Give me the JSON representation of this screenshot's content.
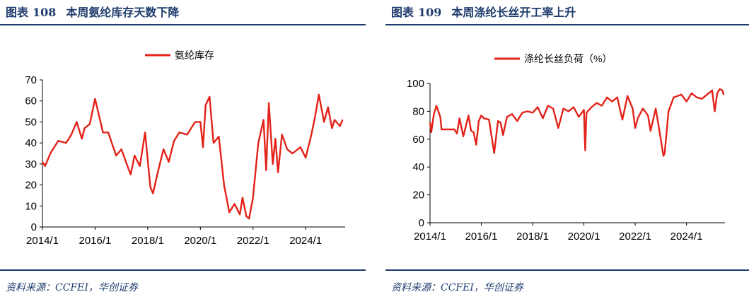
{
  "colors": {
    "accent": "#1f3d6e",
    "line": "#e32219"
  },
  "source_text": "资料来源：CCFEI，华创证券",
  "chart_data": [
    {
      "type": "line",
      "fig_prefix": "图表",
      "fig_number": "108",
      "title": "本周氨纶库存天数下降",
      "series": [
        {
          "name": "氨纶库存",
          "x": [
            2014.0,
            2014.1,
            2014.3,
            2014.6,
            2014.9,
            2015.1,
            2015.3,
            2015.5,
            2015.6,
            2015.8,
            2016.0,
            2016.3,
            2016.5,
            2016.8,
            2017.0,
            2017.2,
            2017.35,
            2017.5,
            2017.7,
            2017.9,
            2018.1,
            2018.2,
            2018.4,
            2018.6,
            2018.8,
            2019.0,
            2019.2,
            2019.5,
            2019.8,
            2020.0,
            2020.1,
            2020.2,
            2020.35,
            2020.5,
            2020.7,
            2020.9,
            2021.1,
            2021.3,
            2021.5,
            2021.6,
            2021.75,
            2021.85,
            2022.0,
            2022.2,
            2022.4,
            2022.5,
            2022.6,
            2022.75,
            2022.85,
            2022.95,
            2023.1,
            2023.3,
            2023.5,
            2023.8,
            2024.0,
            2024.2,
            2024.35,
            2024.5,
            2024.7,
            2024.85,
            2025.0,
            2025.1,
            2025.3,
            2025.4
          ],
          "values": [
            31,
            29,
            35,
            41,
            40,
            44,
            50,
            42,
            47,
            49,
            61,
            45,
            45,
            34,
            37,
            30,
            25,
            34,
            29,
            45,
            19,
            16,
            27,
            37,
            31,
            41,
            45,
            44,
            50,
            50,
            38,
            58,
            62,
            40,
            43,
            20,
            7,
            11,
            6,
            14,
            5,
            4,
            14,
            40,
            51,
            27,
            59,
            30,
            42,
            26,
            44,
            37,
            35,
            38,
            33,
            43,
            52,
            63,
            50,
            57,
            47,
            51,
            48,
            51
          ]
        }
      ],
      "ylim": [
        0,
        70
      ],
      "yticks": [
        "0",
        "10",
        "20",
        "30",
        "40",
        "50",
        "60",
        "70"
      ],
      "xlim": [
        2014.0,
        2025.5
      ],
      "xticks": [
        "2014/1",
        "2016/1",
        "2018/1",
        "2020/1",
        "2022/1",
        "2024/1"
      ]
    },
    {
      "type": "line",
      "fig_prefix": "图表",
      "fig_number": "109",
      "title": "本周涤纶长丝开工率上升",
      "series": [
        {
          "name": "涤纶长丝负荷（%）",
          "x": [
            2014.0,
            2014.05,
            2014.15,
            2014.25,
            2014.4,
            2014.45,
            2014.6,
            2014.8,
            2014.95,
            2015.05,
            2015.15,
            2015.3,
            2015.5,
            2015.6,
            2015.7,
            2015.8,
            2015.9,
            2016.0,
            2016.1,
            2016.3,
            2016.5,
            2016.65,
            2016.75,
            2016.85,
            2017.0,
            2017.2,
            2017.4,
            2017.6,
            2017.8,
            2018.0,
            2018.2,
            2018.4,
            2018.6,
            2018.8,
            2019.0,
            2019.2,
            2019.4,
            2019.6,
            2019.8,
            2020.0,
            2020.05,
            2020.1,
            2020.3,
            2020.5,
            2020.7,
            2020.9,
            2021.1,
            2021.3,
            2021.5,
            2021.7,
            2021.9,
            2022.0,
            2022.1,
            2022.3,
            2022.5,
            2022.6,
            2022.8,
            2023.0,
            2023.1,
            2023.15,
            2023.3,
            2023.5,
            2023.8,
            2024.0,
            2024.2,
            2024.4,
            2024.6,
            2024.8,
            2025.0,
            2025.1,
            2025.2,
            2025.3,
            2025.4,
            2025.45
          ],
          "values": [
            72,
            65,
            78,
            84,
            76,
            67,
            67,
            67,
            67,
            64,
            75,
            62,
            77,
            66,
            65,
            56,
            73,
            77,
            75,
            74,
            50,
            73,
            72,
            63,
            76,
            78,
            73,
            79,
            80,
            79,
            83,
            75,
            84,
            82,
            68,
            82,
            80,
            83,
            76,
            81,
            52,
            79,
            83,
            86,
            84,
            90,
            87,
            90,
            74,
            91,
            82,
            68,
            75,
            82,
            77,
            66,
            82,
            60,
            48,
            50,
            80,
            90,
            92,
            87,
            93,
            90,
            89,
            92,
            95,
            80,
            93,
            96,
            95,
            92
          ]
        }
      ],
      "ylim": [
        0,
        100
      ],
      "yticks": [
        "0",
        "20",
        "40",
        "60",
        "80",
        "100"
      ],
      "xlim": [
        2014.0,
        2025.5
      ],
      "xticks": [
        "2014/1",
        "2016/1",
        "2018/1",
        "2020/1",
        "2022/1",
        "2024/1"
      ]
    }
  ]
}
